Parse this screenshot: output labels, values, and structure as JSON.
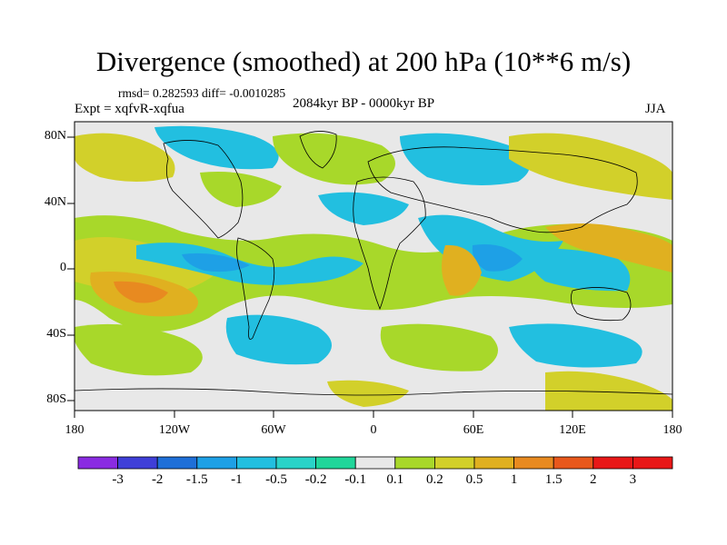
{
  "title": "Divergence (smoothed) at 200 hPa (10**6 m/s)",
  "stats": "rmsd= 0.282593  diff= -0.0010285",
  "experiment": "Expt = xqfvR-xqfua",
  "period": "2084kyr BP - 0000kyr BP",
  "season": "JJA",
  "lat_labels": [
    "80N",
    "40N",
    "0",
    "40S",
    "80S"
  ],
  "lon_labels": [
    "180",
    "120W",
    "60W",
    "0",
    "60E",
    "120E",
    "180"
  ],
  "colorbar": {
    "labels": [
      "-3",
      "-2",
      "-1.5",
      "-1",
      "-0.5",
      "-0.2",
      "-0.1",
      "0.1",
      "0.2",
      "0.5",
      "1",
      "1.5",
      "2",
      "3"
    ],
    "colors": [
      "#8a2be2",
      "#3f3fd8",
      "#1f6fd8",
      "#1ea0e6",
      "#22bfe0",
      "#2ad3c8",
      "#20d69a",
      "#e8e8e8",
      "#a8d82a",
      "#d2d02a",
      "#e0b020",
      "#e88a20",
      "#e8581c",
      "#e81818"
    ]
  },
  "colors": {
    "missing": "#e8e8e8",
    "coast": "#000000"
  }
}
